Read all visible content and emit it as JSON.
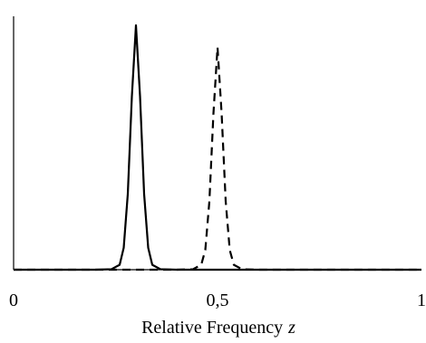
{
  "chart_data": {
    "type": "line",
    "xlabel": "Relative Frequency",
    "xlabel_symbol": "z",
    "xlim": [
      0,
      1
    ],
    "ylim": [
      0,
      1
    ],
    "xticks": [
      {
        "value": 0,
        "label": "0"
      },
      {
        "value": 0.5,
        "label": "0,5"
      },
      {
        "value": 1,
        "label": "1"
      }
    ],
    "grid": false,
    "legend": "none",
    "series": [
      {
        "style": "solid",
        "color": "#000000",
        "x": [
          0,
          0.2,
          0.24,
          0.26,
          0.27,
          0.28,
          0.29,
          0.3,
          0.31,
          0.32,
          0.33,
          0.34,
          0.36,
          0.4,
          1.0
        ],
        "y": [
          0,
          0,
          0.002,
          0.02,
          0.09,
          0.31,
          0.71,
          1.0,
          0.71,
          0.31,
          0.09,
          0.02,
          0.002,
          0,
          0
        ]
      },
      {
        "style": "dashed",
        "color": "#000000",
        "x": [
          0,
          0.4,
          0.44,
          0.46,
          0.47,
          0.48,
          0.49,
          0.5,
          0.51,
          0.52,
          0.53,
          0.54,
          0.56,
          0.6,
          1.0
        ],
        "y": [
          0,
          0,
          0.002,
          0.02,
          0.08,
          0.28,
          0.64,
          0.91,
          0.64,
          0.28,
          0.08,
          0.02,
          0.002,
          0,
          0
        ]
      }
    ]
  }
}
